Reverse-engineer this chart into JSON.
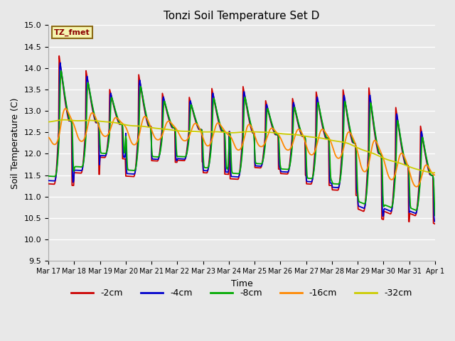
{
  "title": "Tonzi Soil Temperature Set D",
  "xlabel": "Time",
  "ylabel": "Soil Temperature (C)",
  "ylim": [
    9.5,
    15.0
  ],
  "legend_label": "TZ_fmet",
  "series_labels": [
    "-2cm",
    "-4cm",
    "-8cm",
    "-16cm",
    "-32cm"
  ],
  "series_colors": [
    "#cc0000",
    "#0000cc",
    "#00aa00",
    "#ff8800",
    "#cccc00"
  ],
  "bg_color": "#e8e8e8",
  "plot_bg": "#e8e8e8",
  "grid_color": "#ffffff",
  "tick_labels": [
    "Mar 17",
    "Mar 18",
    "Mar 19",
    "Mar 20",
    "Mar 21",
    "Mar 22",
    "Mar 23",
    "Mar 24",
    "Mar 25",
    "Mar 26",
    "Mar 27",
    "Mar 28",
    "Mar 29",
    "Mar 30",
    "Mar 31",
    "Apr 1"
  ]
}
